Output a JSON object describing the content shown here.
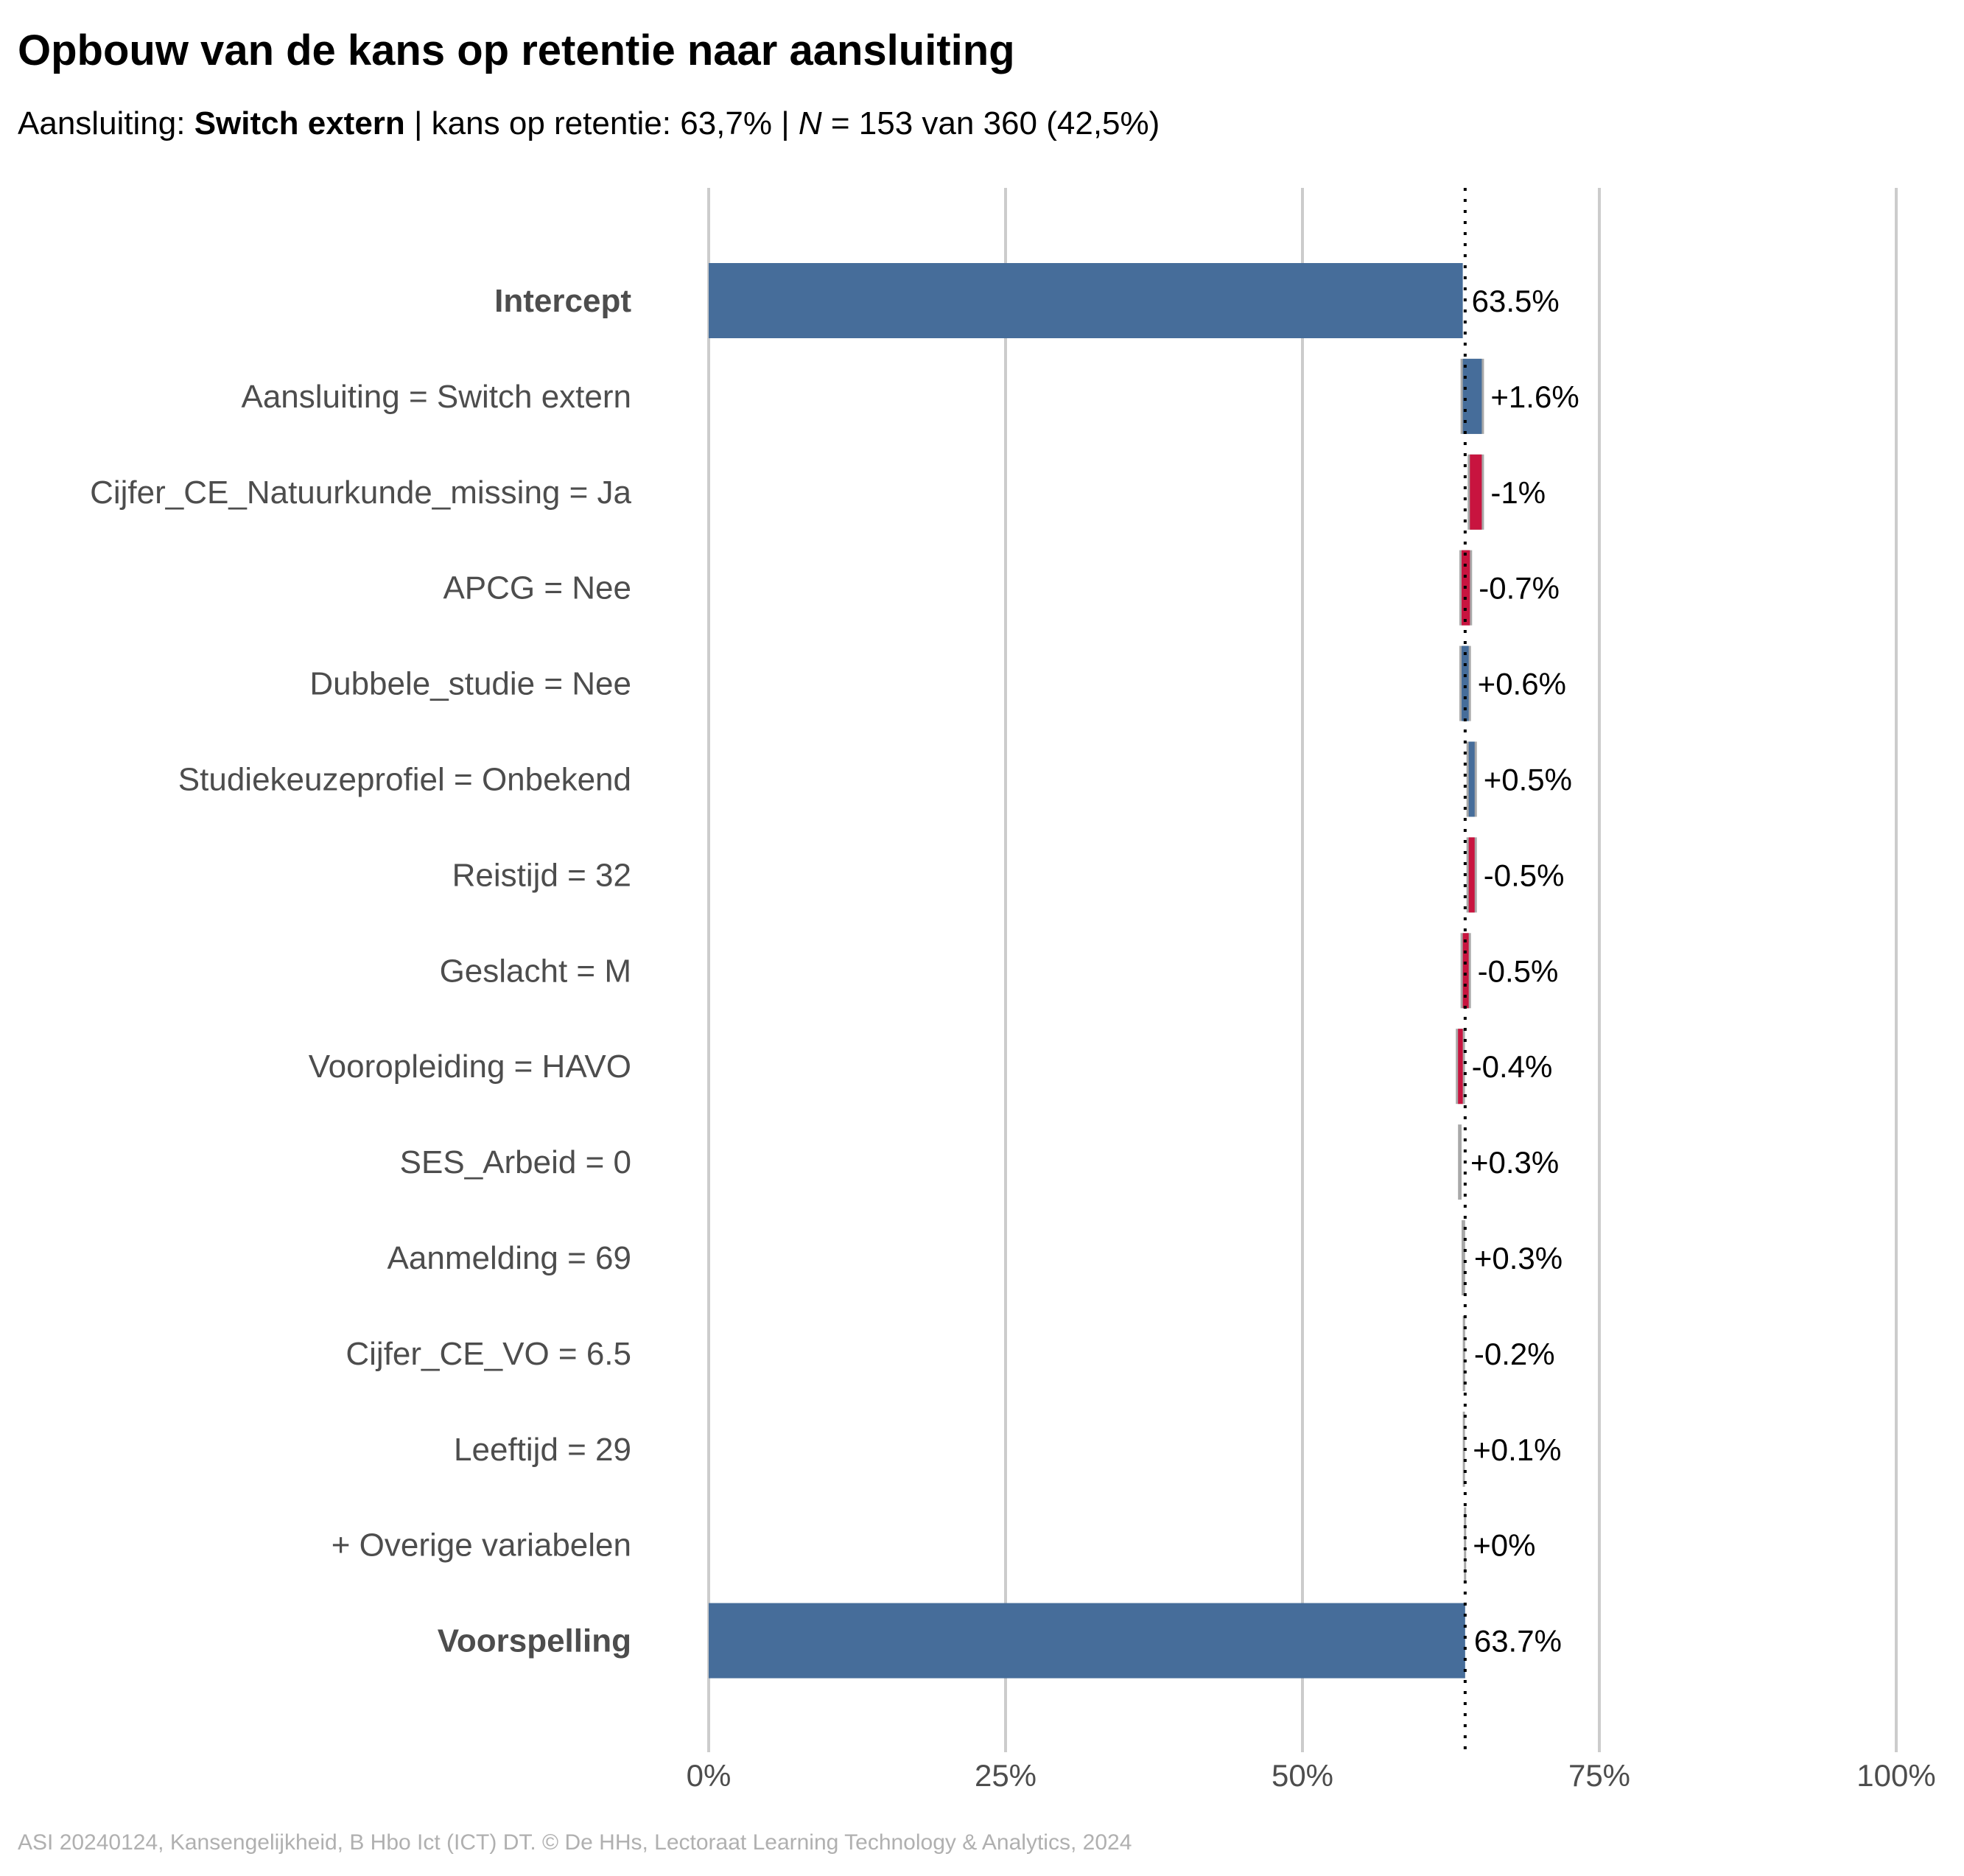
{
  "header": {
    "title": "Opbouw van de kans op retentie naar aansluiting",
    "subtitle_prefix": "Aansluiting: ",
    "subtitle_group": "Switch extern",
    "subtitle_middle": " | kans op retentie: 63,7% | ",
    "subtitle_n_symbol": "N",
    "subtitle_suffix": " = 153 van 360 (42,5%)"
  },
  "footer": {
    "caption": "ASI 20240124, Kansengelijkheid, B Hbo Ict (ICT) DT. © De HHs, Lectoraat Learning Technology & Analytics, 2024"
  },
  "colors": {
    "positive": "#466D9A",
    "negative": "#C8143F",
    "neutral": "#A9A9A9",
    "grid": "#CCCCCC",
    "label": "#4D4D4D",
    "caption": "#B0B0B0"
  },
  "chart_data": {
    "type": "bar",
    "subtype": "waterfall",
    "orientation": "horizontal",
    "xlim": [
      0,
      100
    ],
    "x_ticks": [
      0,
      25,
      50,
      75,
      100
    ],
    "x_tick_labels": [
      "0%",
      "25%",
      "50%",
      "75%",
      "100%"
    ],
    "reference_line": 63.7,
    "grid": "vertical",
    "rows": [
      {
        "label": "Intercept",
        "kind": "total",
        "bold": true,
        "start": 0,
        "end": 63.5,
        "value_label": "63.5%"
      },
      {
        "label": "Aansluiting = Switch extern",
        "kind": "positive",
        "start": 63.5,
        "end": 65.1,
        "value_label": "+1.6%"
      },
      {
        "label": "Cijfer_CE_Natuurkunde_missing = Ja",
        "kind": "negative",
        "start": 65.1,
        "end": 64.1,
        "value_label": "-1%"
      },
      {
        "label": "APCG = Nee",
        "kind": "negative",
        "start": 64.1,
        "end": 63.4,
        "value_label": "-0.7%"
      },
      {
        "label": "Dubbele_studie = Nee",
        "kind": "positive",
        "start": 63.4,
        "end": 64.0,
        "value_label": "+0.6%"
      },
      {
        "label": "Studiekeuzeprofiel = Onbekend",
        "kind": "positive",
        "start": 64.0,
        "end": 64.5,
        "value_label": "+0.5%"
      },
      {
        "label": "Reistijd = 32",
        "kind": "negative",
        "start": 64.5,
        "end": 64.0,
        "value_label": "-0.5%"
      },
      {
        "label": "Geslacht = M",
        "kind": "negative",
        "start": 64.0,
        "end": 63.5,
        "value_label": "-0.5%"
      },
      {
        "label": "Vooropleiding = HAVO",
        "kind": "negative",
        "start": 63.5,
        "end": 63.1,
        "value_label": "-0.4%"
      },
      {
        "label": "SES_Arbeid = 0",
        "kind": "neutral",
        "start": 63.1,
        "end": 63.4,
        "value_label": "+0.3%"
      },
      {
        "label": "Aanmelding = 69",
        "kind": "neutral",
        "start": 63.4,
        "end": 63.7,
        "value_label": "+0.3%"
      },
      {
        "label": "Cijfer_CE_VO = 6.5",
        "kind": "neutral",
        "start": 63.7,
        "end": 63.5,
        "value_label": "-0.2%"
      },
      {
        "label": "Leeftijd = 29",
        "kind": "neutral",
        "start": 63.5,
        "end": 63.6,
        "value_label": "+0.1%"
      },
      {
        "label": "+ Overige variabelen",
        "kind": "neutral",
        "start": 63.6,
        "end": 63.6,
        "value_label": "+0%"
      },
      {
        "label": "Voorspelling",
        "kind": "total",
        "bold": true,
        "start": 0,
        "end": 63.7,
        "value_label": "63.7%"
      }
    ]
  }
}
